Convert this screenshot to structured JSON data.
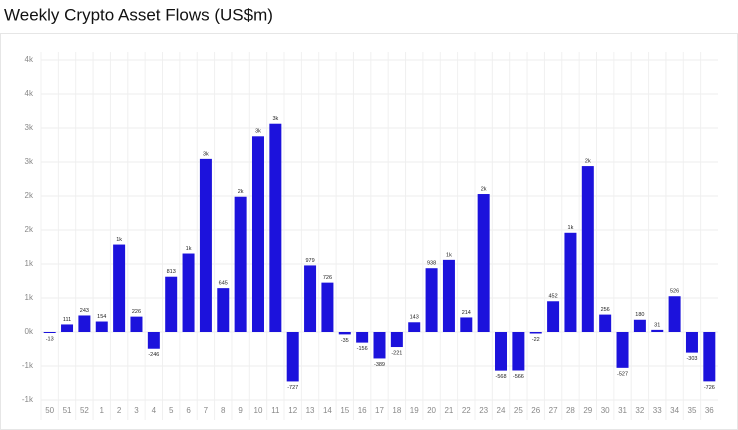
{
  "chart_data": {
    "type": "bar",
    "title": "Weekly Crypto Asset Flows (US$m)",
    "categories": [
      "50",
      "51",
      "52",
      "1",
      "2",
      "3",
      "4",
      "5",
      "6",
      "7",
      "8",
      "9",
      "10",
      "11",
      "12",
      "13",
      "14",
      "15",
      "16",
      "17",
      "18",
      "19",
      "20",
      "21",
      "22",
      "23",
      "24",
      "25",
      "26",
      "27",
      "28",
      "29",
      "30",
      "31",
      "32",
      "33",
      "34",
      "35",
      "36"
    ],
    "values": [
      -13,
      111,
      243,
      154,
      1286,
      226,
      -246,
      813,
      1154,
      2546,
      645,
      1989,
      2878,
      3063,
      -727,
      979,
      726,
      -35,
      -156,
      -389,
      -221,
      143,
      938,
      1061,
      214,
      2029,
      -568,
      -566,
      -22,
      452,
      1459,
      2440,
      256,
      -527,
      180,
      31,
      526,
      -303,
      -726
    ],
    "value_labels": [
      "-13",
      "111",
      "243",
      "154",
      "1k",
      "226",
      "-246",
      "813",
      "1k",
      "3k",
      "645",
      "2k",
      "3k",
      "3k",
      "-727",
      "979",
      "726",
      "-35",
      "-156",
      "-389",
      "-221",
      "143",
      "938",
      "1k",
      "214",
      "2k",
      "-568",
      "-566",
      "-22",
      "452",
      "1k",
      "2k",
      "256",
      "-527",
      "180",
      "31",
      "526",
      "-303",
      "-726"
    ],
    "color": "#1c12dc",
    "ylim": [
      -1000,
      4000
    ],
    "yticks": [
      {
        "value": -1000,
        "label": "-1k"
      },
      {
        "value": -500,
        "label": "-1k"
      },
      {
        "value": 0,
        "label": "0k"
      },
      {
        "value": 500,
        "label": "1k"
      },
      {
        "value": 1000,
        "label": "1k"
      },
      {
        "value": 1500,
        "label": "2k"
      },
      {
        "value": 2000,
        "label": "2k"
      },
      {
        "value": 2500,
        "label": "3k"
      },
      {
        "value": 3000,
        "label": "3k"
      },
      {
        "value": 3500,
        "label": "4k"
      },
      {
        "value": 4000,
        "label": "4k"
      }
    ],
    "grid": true
  }
}
